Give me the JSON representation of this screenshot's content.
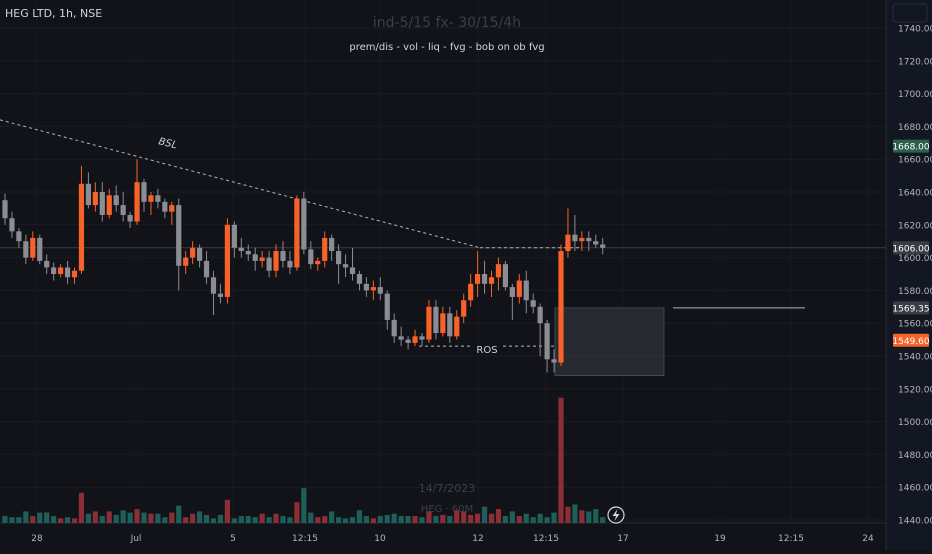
{
  "header": {
    "symbol": "HEG LTD, 1h, NSE",
    "watermark_title": "ind-5/15 fx- 30/15/4h",
    "subtitle": "prem/dis - vol - liq - fvg - bob on ob fvg"
  },
  "watermark": {
    "date": "14/7/2023",
    "series": "HEG · 60M"
  },
  "annotations": {
    "bsl": "BSL",
    "ros": "ROS"
  },
  "price_badges": [
    {
      "value": "1668.00",
      "color": "#2e5f4d"
    },
    {
      "value": "1606.00",
      "color": "#3a3d45"
    },
    {
      "value": "1569.35",
      "color": "#3a3d45"
    },
    {
      "value": "1549.60",
      "color": "#f7622a"
    }
  ],
  "colors": {
    "up": "#f7622a",
    "down": "#8c8c93",
    "vol_up": "#8b2e36",
    "vol_down": "#1f5f5a",
    "background": "#111318"
  },
  "icons": {
    "flash": "lightning-icon"
  },
  "chart_data": {
    "type": "candlestick",
    "y_axis": {
      "min": 1440,
      "max": 1740,
      "ticks": [
        "1440.00",
        "1460.00",
        "1480.00",
        "1500.00",
        "1520.00",
        "1540.00",
        "1560.00",
        "1580.00",
        "1600.00",
        "1620.00",
        "1640.00",
        "1660.00",
        "1680.00",
        "1700.00",
        "1720.00",
        "1740.00"
      ]
    },
    "x_axis": {
      "ticks": [
        "28",
        "Jul",
        "5",
        "12:15",
        "10",
        "12",
        "12:15",
        "17",
        "19",
        "12:15",
        "24"
      ]
    },
    "candles": [
      [
        1635,
        1639,
        1620,
        1624
      ],
      [
        1624,
        1628,
        1612,
        1616
      ],
      [
        1616,
        1618,
        1606,
        1610
      ],
      [
        1610,
        1614,
        1596,
        1600
      ],
      [
        1600,
        1616,
        1598,
        1612
      ],
      [
        1612,
        1614,
        1596,
        1598
      ],
      [
        1598,
        1602,
        1590,
        1594
      ],
      [
        1594,
        1597,
        1586,
        1590
      ],
      [
        1590,
        1596,
        1588,
        1594
      ],
      [
        1594,
        1598,
        1584,
        1588
      ],
      [
        1588,
        1594,
        1584,
        1592
      ],
      [
        1592,
        1656,
        1590,
        1645
      ],
      [
        1645,
        1652,
        1630,
        1632
      ],
      [
        1632,
        1646,
        1628,
        1640
      ],
      [
        1640,
        1646,
        1622,
        1626
      ],
      [
        1626,
        1642,
        1624,
        1638
      ],
      [
        1638,
        1644,
        1628,
        1632
      ],
      [
        1632,
        1640,
        1622,
        1626
      ],
      [
        1626,
        1628,
        1618,
        1622
      ],
      [
        1622,
        1660,
        1620,
        1646
      ],
      [
        1646,
        1648,
        1628,
        1634
      ],
      [
        1634,
        1640,
        1626,
        1638
      ],
      [
        1638,
        1642,
        1630,
        1634
      ],
      [
        1634,
        1636,
        1624,
        1628
      ],
      [
        1628,
        1634,
        1620,
        1632
      ],
      [
        1632,
        1636,
        1580,
        1595
      ],
      [
        1595,
        1604,
        1590,
        1600
      ],
      [
        1600,
        1610,
        1596,
        1606
      ],
      [
        1606,
        1608,
        1594,
        1598
      ],
      [
        1598,
        1604,
        1584,
        1588
      ],
      [
        1588,
        1592,
        1565,
        1578
      ],
      [
        1578,
        1584,
        1572,
        1576
      ],
      [
        1576,
        1624,
        1572,
        1620
      ],
      [
        1620,
        1622,
        1600,
        1606
      ],
      [
        1606,
        1612,
        1600,
        1604
      ],
      [
        1604,
        1608,
        1598,
        1602
      ],
      [
        1602,
        1606,
        1592,
        1598
      ],
      [
        1598,
        1604,
        1594,
        1600
      ],
      [
        1600,
        1604,
        1588,
        1592
      ],
      [
        1592,
        1608,
        1588,
        1604
      ],
      [
        1604,
        1610,
        1594,
        1598
      ],
      [
        1598,
        1604,
        1590,
        1594
      ],
      [
        1594,
        1638,
        1592,
        1636
      ],
      [
        1636,
        1640,
        1602,
        1605
      ],
      [
        1605,
        1610,
        1593,
        1596
      ],
      [
        1596,
        1600,
        1592,
        1598
      ],
      [
        1598,
        1616,
        1594,
        1612
      ],
      [
        1612,
        1614,
        1598,
        1604
      ],
      [
        1604,
        1608,
        1584,
        1596
      ],
      [
        1596,
        1602,
        1588,
        1594
      ],
      [
        1594,
        1606,
        1586,
        1590
      ],
      [
        1590,
        1592,
        1580,
        1584
      ],
      [
        1584,
        1588,
        1576,
        1580
      ],
      [
        1580,
        1586,
        1574,
        1582
      ],
      [
        1582,
        1588,
        1574,
        1578
      ],
      [
        1578,
        1580,
        1556,
        1562
      ],
      [
        1562,
        1566,
        1548,
        1552
      ],
      [
        1552,
        1558,
        1546,
        1550
      ],
      [
        1550,
        1552,
        1544,
        1548
      ],
      [
        1548,
        1556,
        1546,
        1552
      ],
      [
        1552,
        1554,
        1546,
        1550
      ],
      [
        1550,
        1574,
        1548,
        1570
      ],
      [
        1570,
        1574,
        1550,
        1554
      ],
      [
        1554,
        1570,
        1552,
        1566
      ],
      [
        1566,
        1570,
        1548,
        1552
      ],
      [
        1552,
        1568,
        1550,
        1564
      ],
      [
        1564,
        1578,
        1560,
        1574
      ],
      [
        1574,
        1590,
        1570,
        1584
      ],
      [
        1584,
        1604,
        1576,
        1590
      ],
      [
        1590,
        1598,
        1578,
        1584
      ],
      [
        1584,
        1592,
        1576,
        1588
      ],
      [
        1588,
        1600,
        1580,
        1596
      ],
      [
        1596,
        1598,
        1580,
        1582
      ],
      [
        1582,
        1584,
        1562,
        1576
      ],
      [
        1576,
        1590,
        1572,
        1586
      ],
      [
        1586,
        1592,
        1566,
        1574
      ],
      [
        1574,
        1578,
        1566,
        1570
      ],
      [
        1570,
        1572,
        1540,
        1560
      ],
      [
        1560,
        1562,
        1530,
        1538
      ],
      [
        1538,
        1544,
        1530,
        1536
      ],
      [
        1536,
        1608,
        1534,
        1604
      ],
      [
        1604,
        1630,
        1600,
        1614
      ],
      [
        1614,
        1626,
        1604,
        1610
      ],
      [
        1610,
        1616,
        1604,
        1612
      ],
      [
        1612,
        1616,
        1604,
        1610
      ],
      [
        1610,
        1614,
        1606,
        1608
      ],
      [
        1608,
        1612,
        1602,
        1606
      ]
    ],
    "volumes": [
      6,
      5,
      5,
      10,
      6,
      9,
      9,
      6,
      4,
      5,
      4,
      26,
      8,
      10,
      6,
      10,
      7,
      11,
      9,
      12,
      9,
      8,
      8,
      5,
      9,
      15,
      5,
      8,
      10,
      7,
      4,
      7,
      20,
      4,
      6,
      6,
      5,
      8,
      5,
      8,
      6,
      5,
      18,
      30,
      9,
      5,
      6,
      10,
      5,
      4,
      5,
      11,
      6,
      4,
      6,
      7,
      8,
      6,
      6,
      6,
      5,
      10,
      6,
      7,
      6,
      11,
      10,
      7,
      8,
      14,
      8,
      12,
      6,
      10,
      6,
      8,
      5,
      8,
      5,
      9,
      108,
      14,
      16,
      11,
      10,
      12,
      5
    ],
    "levels": {
      "bsl_trendline": [
        1684,
        1606
      ],
      "ros_level": 1546,
      "fvg_box": [
        1569.35,
        1528
      ],
      "ray_level": 1569.35,
      "current_price": 1606.0
    }
  }
}
